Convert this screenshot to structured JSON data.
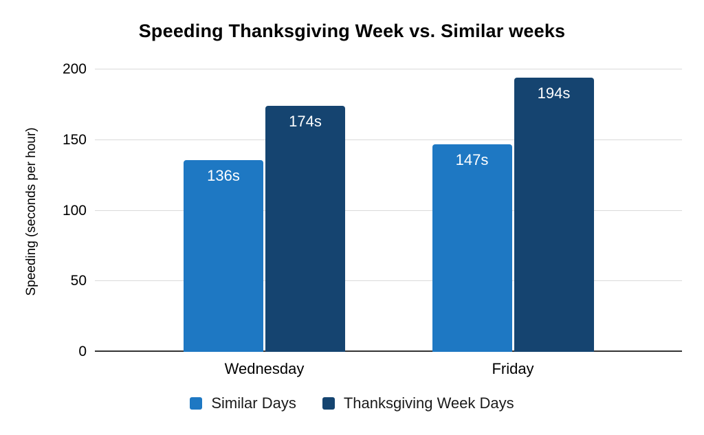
{
  "chart_data": {
    "type": "bar",
    "title": "Speeding Thanksgiving Week vs. Similar weeks",
    "xlabel": "",
    "ylabel": "Speeding (seconds per hour)",
    "categories": [
      "Wednesday",
      "Friday"
    ],
    "series": [
      {
        "name": "Similar Days",
        "color": "#1E78C3",
        "values": [
          136,
          147
        ],
        "data_labels": [
          "136s",
          "147s"
        ]
      },
      {
        "name": "Thanksgiving Week Days",
        "color": "#154470",
        "values": [
          174,
          194
        ],
        "data_labels": [
          "174s",
          "194s"
        ]
      }
    ],
    "ylim": [
      0,
      200
    ],
    "yticks": [
      0,
      50,
      100,
      150,
      200
    ],
    "grid": true,
    "gridline_color": "#d9d9d9",
    "axis_line_color": "#333333",
    "legend_position": "bottom",
    "background_color": "#ffffff",
    "data_label_color": "#ffffff"
  }
}
